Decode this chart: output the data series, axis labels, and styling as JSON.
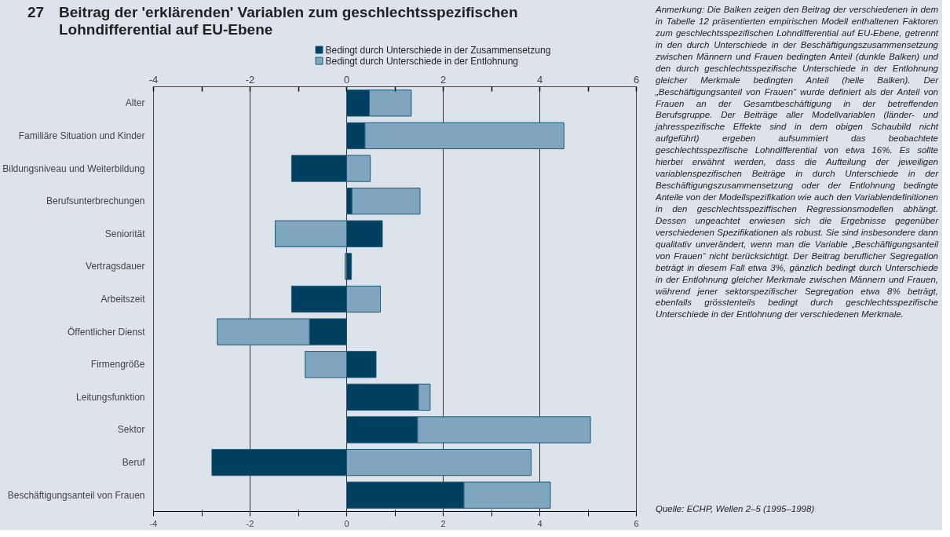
{
  "chart_data": {
    "type": "bar",
    "orientation": "horizontal",
    "stacked": true,
    "title": "Beitrag der 'erklärenden' Variablen zum geschlechtsspezifischen Lohndifferential auf EU-Ebene",
    "categories": [
      "Alter",
      "Familiäre Situation und Kinder",
      "Bildungsniveau und Weiterbildung",
      "Berufsunterbrechungen",
      "Seniorität",
      "Vertragsdauer",
      "Arbeitszeit",
      "Öffentlicher Dienst",
      "Firmengröße",
      "Leitungsfunktion",
      "Sektor",
      "Beruf",
      "Beschäftigungsanteil von Frauen"
    ],
    "series": [
      {
        "name": "Bedingt durch Unterschiede in der Zusammensetzung",
        "color": "#003f5f",
        "values": [
          0.47,
          0.38,
          -1.14,
          0.11,
          0.74,
          0.1,
          -1.14,
          -0.77,
          0.61,
          1.49,
          1.47,
          -2.79,
          2.43
        ]
      },
      {
        "name": "Bedingt durch Unterschiede in der Entlohnung",
        "color": "#80a6bf",
        "values": [
          0.87,
          4.12,
          0.49,
          1.41,
          -1.48,
          -0.03,
          0.7,
          -1.91,
          -0.86,
          0.24,
          3.58,
          3.82,
          1.79
        ]
      }
    ],
    "xlim": [
      -4,
      6
    ],
    "xticks": [
      -4,
      {
        "value": -3,
        "label": null
      },
      -2,
      {
        "value": -1,
        "label": null
      },
      0,
      {
        "value": 1,
        "label": null
      },
      2,
      {
        "value": 3,
        "label": null
      },
      4,
      {
        "value": 5,
        "label": null
      },
      6
    ],
    "x2lim": [
      -4,
      6
    ],
    "x2ticks": [
      -4,
      {
        "value": -3,
        "label": null
      },
      -2,
      {
        "value": -1,
        "label": null
      },
      0,
      {
        "value": 1,
        "label": null
      },
      2,
      {
        "value": 3,
        "label": null
      },
      4,
      {
        "value": 5,
        "label": null
      },
      6
    ],
    "grid": "x",
    "legend": "top",
    "annotations": [
      "27",
      "Anmerkung: Die Balken zeigen den Beitrag der verschiedenen in dem in Tabelle 12 präsentierten empirischen Modell enthaltenen Faktoren zum geschlechtsspezifischen Lohndifferential auf EU-Ebene, getrennt in den durch Unterschiede in der Beschäftigungszusammensetzung zwischen Männern und Frauen bedingten Anteil (dunkle Balken) und den durch geschlechtsspezifische Unterschiede in der Entlohnung gleicher Merkmale bedingten Anteil (helle Balken). Der „Beschäftigungsanteil von Frauen“ wurde definiert als der Anteil von Frauen an der Gesamtbeschäftigung in der betreffenden Berufsgruppe. Der Beiträge aller Modellvariablen (länder- und jahresspezifische Effekte sind in dem obigen Schaubild nicht aufgeführt) ergeben aufsummiert das beobachtete geschlechtsspezifische Lohndifferential von etwa 16%. Es sollte hierbei erwähnt werden, dass die Aufteilung der jeweiligen variablenspezifischen Beiträge in durch Unterschiede in der Beschäftigungszusammensetzung oder der Entlohnung bedingte Anteile von der Modellspezifikation wie auch den Variablendefinitionen in den geschlechtsspeziffischen Regressionsmodellen abhängt. Dessen ungeachtet erwiesen sich die Ergebnisse gegenüber verschiedenen Spezifikationen als robust. Sie sind insbesondere dann qualitativ unverändert, wenn man die Variable „Beschäftigungsanteil von Frauen“ nicht berücksichtigt. Der Beitrag beruflicher Segregation beträgt in diesem Fall etwa 3%, gänzlich bedingt durch Unterschiede in der Entlohnung gleicher Merkmale zwischen Männern und Frauen, während jener sektorspezifischer Segregation etwa 8% beträgt, ebenfalls grösstenteils bedingt durch geschlechtsspezifische Unterschiede in der Entlohnung der verschiedenen Merkmale.",
      "Quelle: ECHP, Wellen 2–5 (1995–1998)"
    ]
  }
}
